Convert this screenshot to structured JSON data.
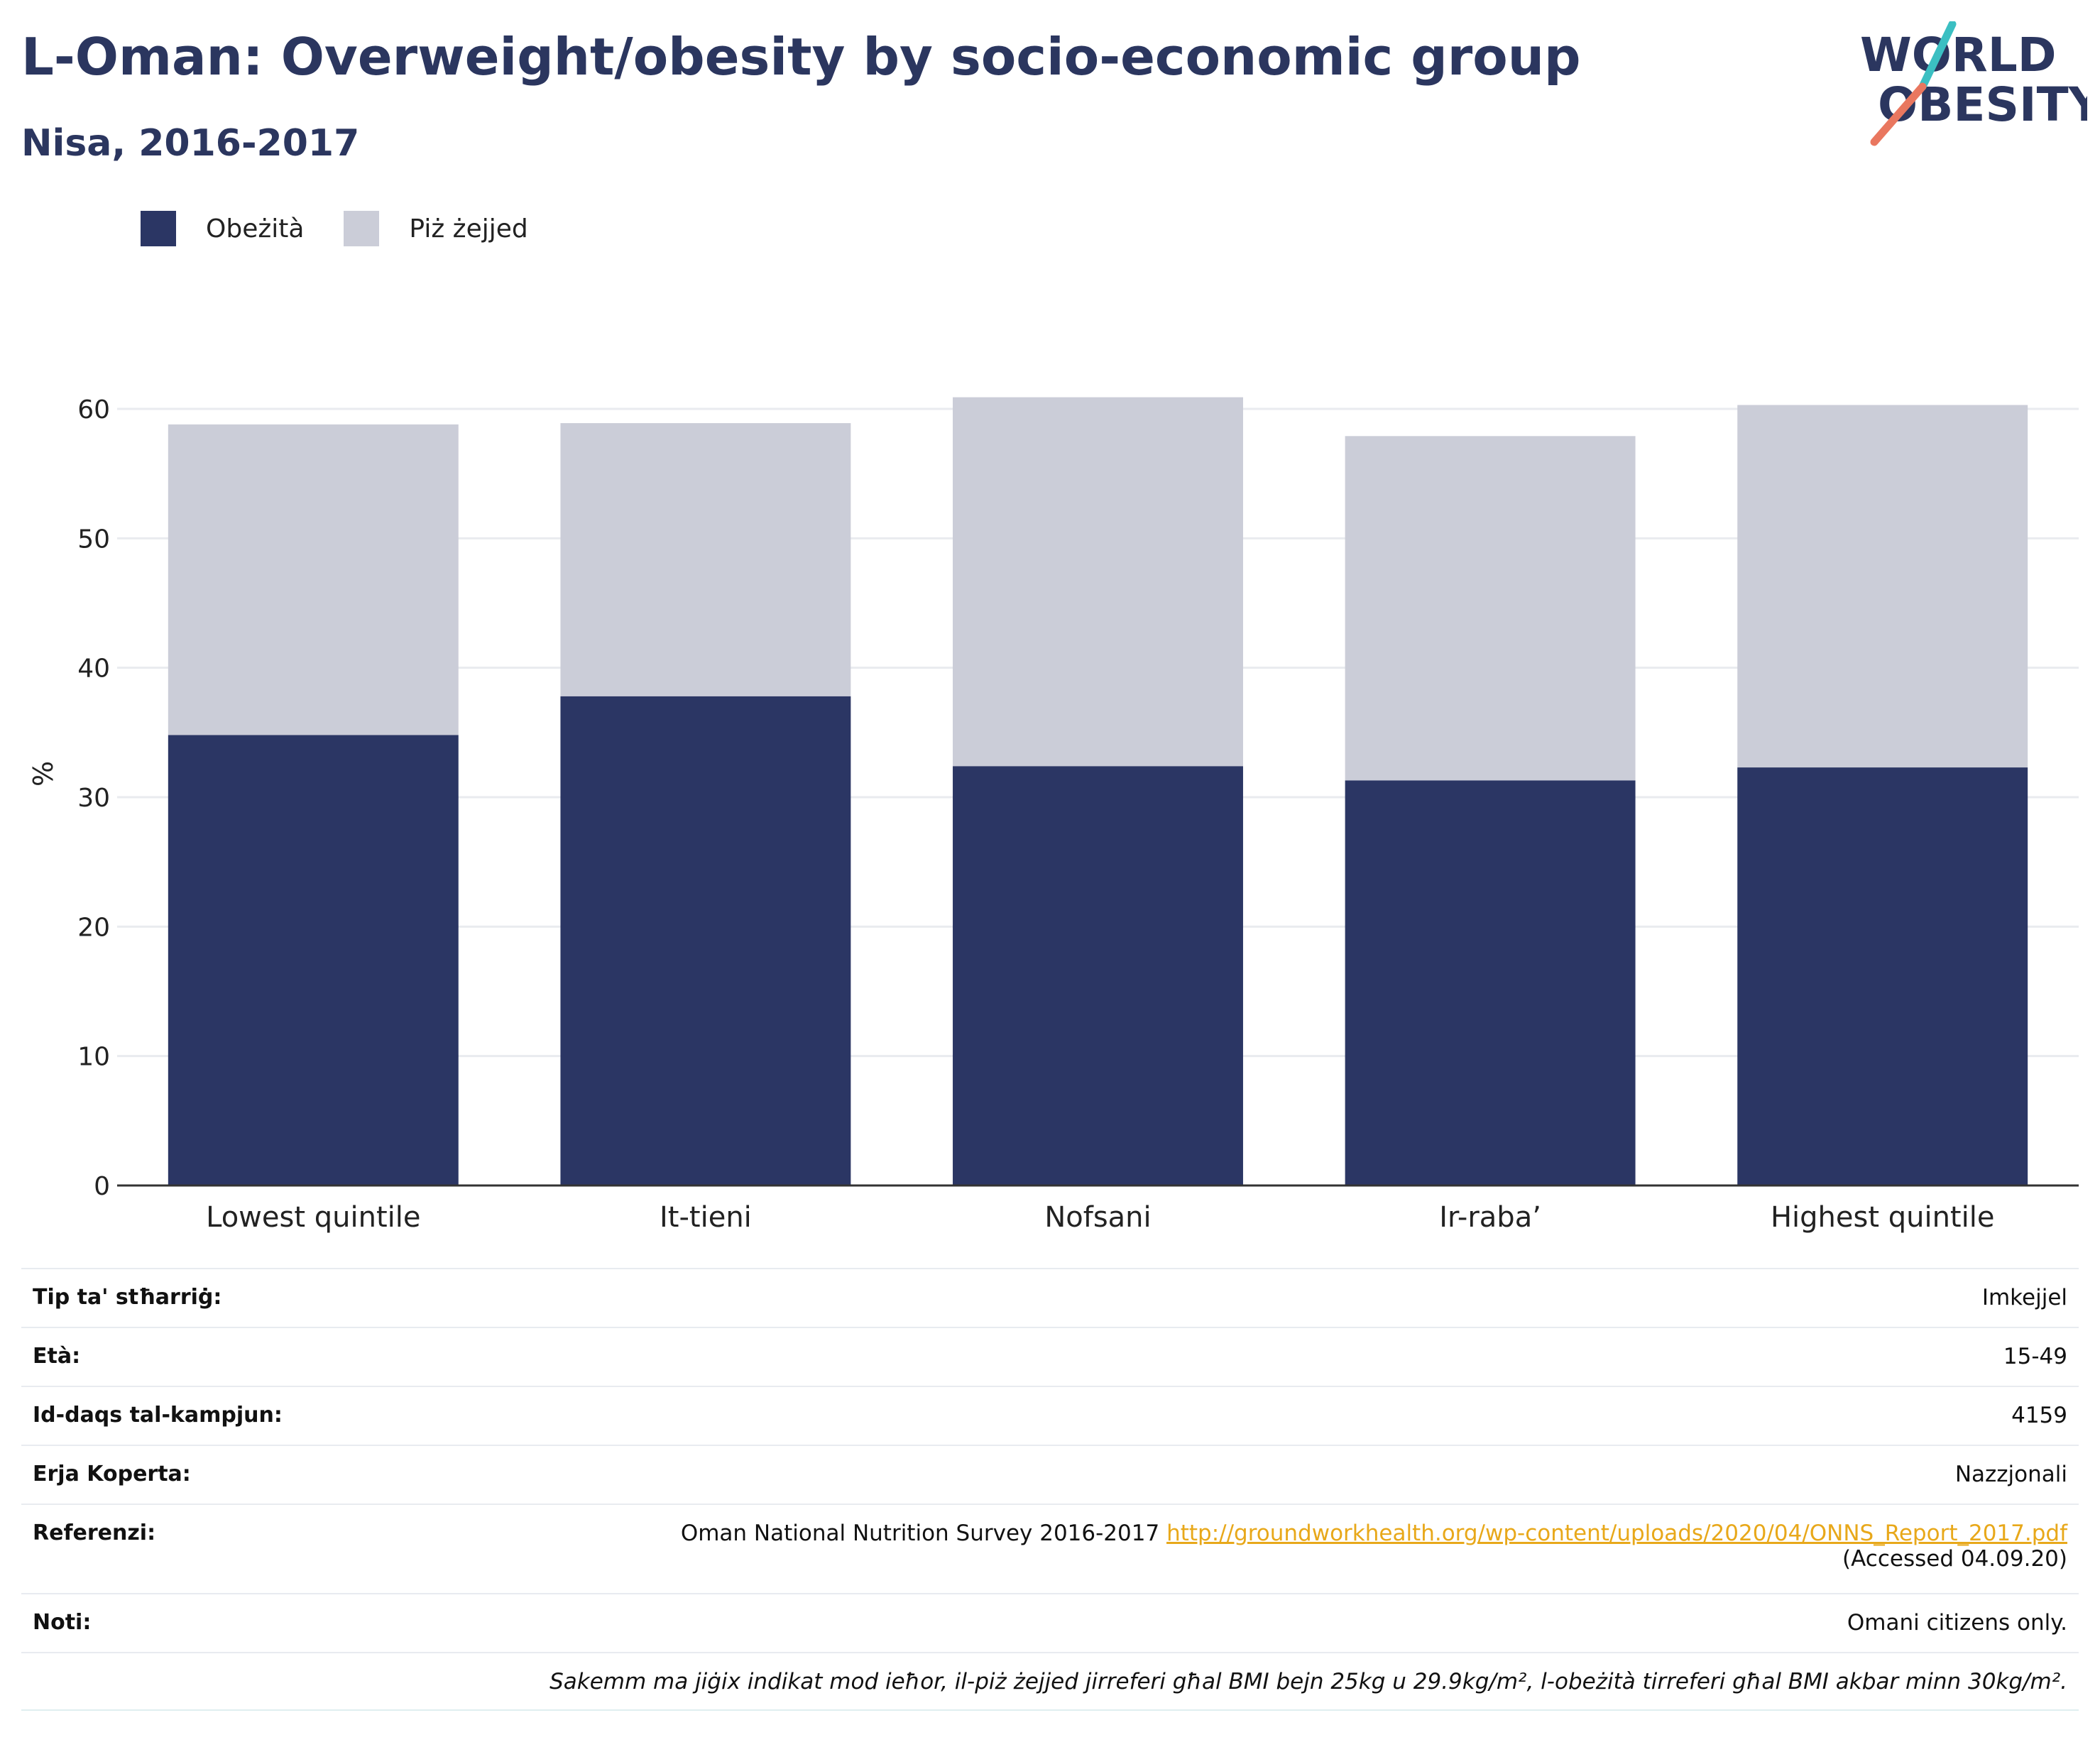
{
  "header": {
    "title": "L-Oman: Overweight/obesity by socio-economic group",
    "subtitle": "Nisa, 2016-2017"
  },
  "logo": {
    "line1": "WORLD",
    "line2": "OBESITY",
    "icon": "world-obesity-logo"
  },
  "colors": {
    "obesity": "#2b3664",
    "overweight": "#cbcdd8",
    "title": "#2b365f",
    "link": "#e8a81a",
    "logo_teal": "#3bbfc2",
    "logo_coral": "#e9775f"
  },
  "legend": {
    "obesity_label": "Obeżità",
    "overweight_label": "Piż żejjed"
  },
  "chart_data": {
    "type": "bar",
    "stacked": true,
    "categories": [
      "Lowest quintile",
      "It-tieni",
      "Nofsani",
      "Ir-raba’",
      "Highest quintile"
    ],
    "series": [
      {
        "name": "Obeżità",
        "values": [
          34.8,
          37.8,
          32.4,
          31.3,
          32.3
        ]
      },
      {
        "name": "Piż żejjed",
        "values": [
          24.0,
          21.1,
          28.5,
          26.6,
          28.0
        ]
      }
    ],
    "totals": [
      58.8,
      58.9,
      60.9,
      57.9,
      60.3
    ],
    "ylabel": "%",
    "yticks": [
      0,
      10,
      20,
      30,
      40,
      50,
      60
    ],
    "ylim": [
      0,
      60
    ],
    "grid": true,
    "legend_position": "top-left"
  },
  "meta": {
    "survey_type_label": "Tip ta' stħarriġ:",
    "survey_type_value": "Imkejjel",
    "age_label": "Età:",
    "age_value": "15-49",
    "sample_label": "Id-daqs tal-kampjun:",
    "sample_value": "4159",
    "area_label": "Erja Koperta:",
    "area_value": "Nazzjonali",
    "ref_label": "Referenzi:",
    "ref_text": "Oman National Nutrition Survey 2016-2017",
    "ref_url": "http://groundworkhealth.org/wp-content/uploads/2020/04/ONNS_Report_2017.pdf",
    "ref_accessed": "(Accessed 04.09.20)",
    "notes_label": "Noti:",
    "notes_value": "Omani citizens only.",
    "footnote": "Sakemm ma jiġix indikat mod ieħor, il-piż żejjed jirreferi għal BMI bejn 25kg u 29.9kg/m², l-obeżità tirreferi għal BMI akbar minn 30kg/m²."
  }
}
